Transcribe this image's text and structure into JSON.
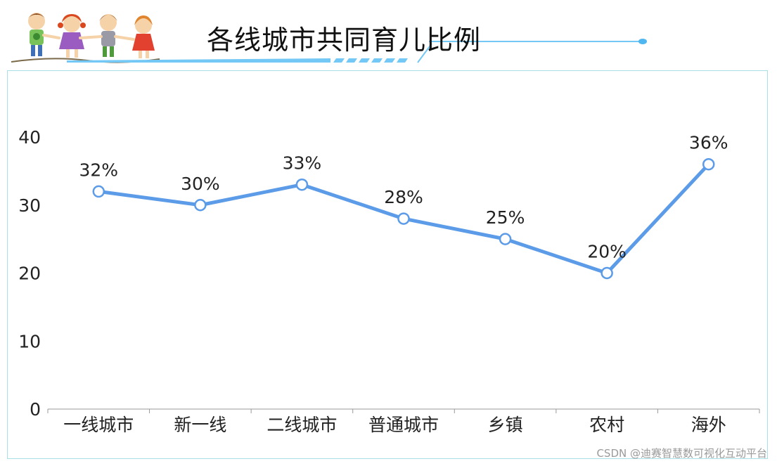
{
  "header": {
    "title": "各线城市共同育儿比例"
  },
  "watermark": "CSDN @迪赛智慧数可视化互动平台",
  "colors": {
    "line": "#5b9be8",
    "marker_fill": "#ffffff",
    "panel_border": "#a9dfe9",
    "accent": "#73c8f5"
  },
  "chart_data": {
    "type": "line",
    "title": "各线城市共同育儿比例",
    "xlabel": "",
    "ylabel": "",
    "categories": [
      "一线城市",
      "新一线",
      "二线城市",
      "普通城市",
      "乡镇",
      "农村",
      "海外"
    ],
    "series": [
      {
        "values": [
          32,
          30,
          33,
          28,
          25,
          20,
          36
        ]
      }
    ],
    "data_labels": [
      "32%",
      "30%",
      "33%",
      "28%",
      "25%",
      "20%",
      "36%"
    ],
    "ylim": [
      0,
      40
    ],
    "yticks": [
      0,
      10,
      20,
      30,
      40
    ],
    "grid": false,
    "legend": "none"
  }
}
